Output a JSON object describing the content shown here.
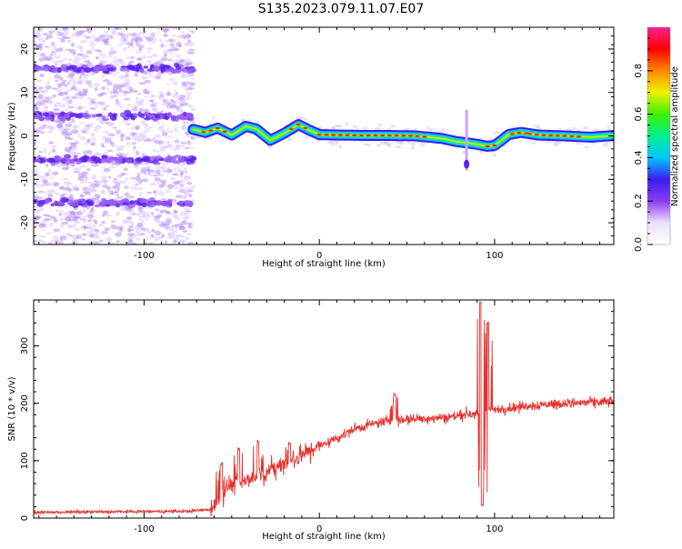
{
  "title": "S135.2023.079.11.07.E07",
  "colors": {
    "snr_line": "#e8302e",
    "axis": "#000000",
    "scatter": "#8a3cf2"
  },
  "chart_data": [
    {
      "id": "spectrogram",
      "type": "heatmap",
      "xlabel": "Height of straight line (km)",
      "ylabel": "Frequency (Hz)",
      "xlim": [
        -163,
        168
      ],
      "ylim": [
        -25,
        25
      ],
      "x_ticks": [
        -100,
        0,
        100
      ],
      "y_ticks": [
        -20,
        -10,
        0,
        10,
        20
      ],
      "colorbar": {
        "label": "Normalized spectral amplitude",
        "range": [
          0,
          1
        ],
        "ticks": [
          "0.0",
          "0.2",
          "0.4",
          "0.6",
          "0.8"
        ],
        "colormap": [
          "#ffffff",
          "#ece0ff",
          "#8a3cf2",
          "#3a1cf0",
          "#00c8ff",
          "#00f090",
          "#3cf000",
          "#f0f000",
          "#ff8800",
          "#ff0000",
          "#ff1f8f"
        ]
      },
      "noise_region_x": [
        -163,
        -72
      ],
      "noise_bands_hz": [
        -15.5,
        -5.5,
        4.5,
        15.5
      ],
      "ridge": [
        [
          -72,
          1.5
        ],
        [
          -65,
          0.8
        ],
        [
          -58,
          1.8
        ],
        [
          -50,
          0.2
        ],
        [
          -42,
          2.2
        ],
        [
          -36,
          1.6
        ],
        [
          -28,
          -1.0
        ],
        [
          -20,
          0.6
        ],
        [
          -12,
          2.6
        ],
        [
          -6,
          1.4
        ],
        [
          0,
          0.3
        ],
        [
          10,
          0.2
        ],
        [
          25,
          0.1
        ],
        [
          40,
          0.1
        ],
        [
          55,
          0.0
        ],
        [
          70,
          -0.6
        ],
        [
          78,
          -1.3
        ],
        [
          84,
          -1.6
        ],
        [
          88,
          -1.8
        ],
        [
          92,
          -2.1
        ],
        [
          96,
          -2.4
        ],
        [
          100,
          -2.2
        ],
        [
          104,
          -1.0
        ],
        [
          108,
          0.3
        ],
        [
          115,
          0.8
        ],
        [
          125,
          0.2
        ],
        [
          140,
          0.0
        ],
        [
          155,
          -0.3
        ],
        [
          168,
          0.1
        ]
      ],
      "ridge_peak_x": [
        [
          -66,
          -54
        ],
        [
          -16,
          -6
        ],
        [
          0,
          60
        ],
        [
          96,
          102
        ],
        [
          110,
          118
        ],
        [
          120,
          150
        ]
      ],
      "spike": {
        "x": 84,
        "y_range_hz": [
          -8,
          6
        ]
      }
    },
    {
      "id": "snr",
      "type": "line",
      "xlabel": "Height of straight line (km)",
      "ylabel": "SNR (10 * v/v)",
      "xlim": [
        -163,
        168
      ],
      "ylim": [
        0,
        380
      ],
      "x_ticks": [
        -100,
        0,
        100
      ],
      "y_ticks": [
        0,
        100,
        200,
        300
      ],
      "series": [
        {
          "trend": [
            [
              -163,
              10
            ],
            [
              -75,
              12
            ],
            [
              -62,
              15
            ],
            [
              -58,
              30
            ],
            [
              -52,
              55
            ],
            [
              -40,
              70
            ],
            [
              -30,
              80
            ],
            [
              -20,
              95
            ],
            [
              -10,
              110
            ],
            [
              0,
              125
            ],
            [
              10,
              140
            ],
            [
              20,
              155
            ],
            [
              30,
              163
            ],
            [
              40,
              170
            ],
            [
              60,
              174
            ],
            [
              75,
              176
            ],
            [
              85,
              182
            ],
            [
              91,
              185
            ],
            [
              100,
              188
            ],
            [
              110,
              192
            ],
            [
              120,
              196
            ],
            [
              140,
              200
            ],
            [
              168,
              203
            ]
          ],
          "events": [
            [
              -56,
              95
            ],
            [
              -46,
              120
            ],
            [
              -35,
              135
            ],
            [
              -17,
              130
            ],
            [
              43,
              215
            ],
            [
              92,
              375
            ],
            [
              96,
              340
            ],
            [
              93,
              22
            ]
          ]
        }
      ]
    }
  ]
}
